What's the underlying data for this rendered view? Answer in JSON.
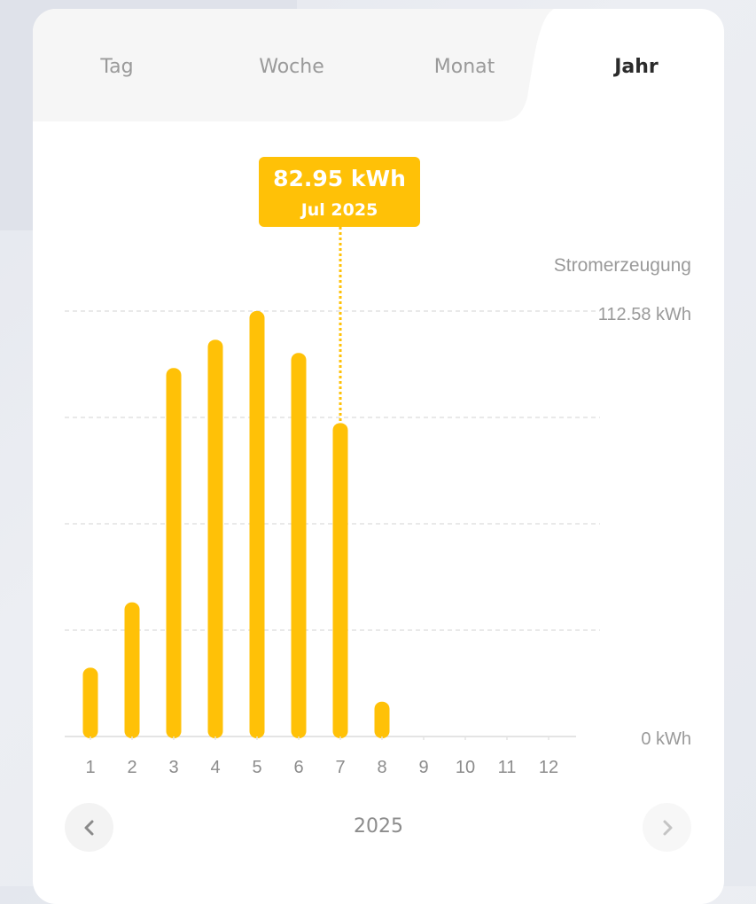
{
  "tabs": [
    {
      "label": "Tag",
      "active": false
    },
    {
      "label": "Woche",
      "active": false
    },
    {
      "label": "Monat",
      "active": false
    },
    {
      "label": "Jahr",
      "active": true
    }
  ],
  "tooltip": {
    "value": "82.95 kWh",
    "date": "Jul 2025",
    "month_index": 7
  },
  "nav": {
    "year": "2025",
    "prev_icon": "chevron-left-icon",
    "next_icon": "chevron-right-icon"
  },
  "colors": {
    "bar": "#ffc107",
    "active_tab": "#2b2b2b",
    "inactive_tab": "#9a9a9a"
  },
  "chart_data": {
    "type": "bar",
    "ylabel": "Stromerzeugung",
    "y_max_label": "112.58 kWh",
    "y_min_label": "0 kWh",
    "ylim": [
      0,
      112.58
    ],
    "grid": true,
    "categories": [
      "1",
      "2",
      "3",
      "4",
      "5",
      "6",
      "7",
      "8",
      "9",
      "10",
      "11",
      "12"
    ],
    "values": [
      18.2,
      35.5,
      97.5,
      105,
      112.6,
      101.5,
      82.95,
      9.2,
      0,
      0,
      0,
      0
    ]
  }
}
